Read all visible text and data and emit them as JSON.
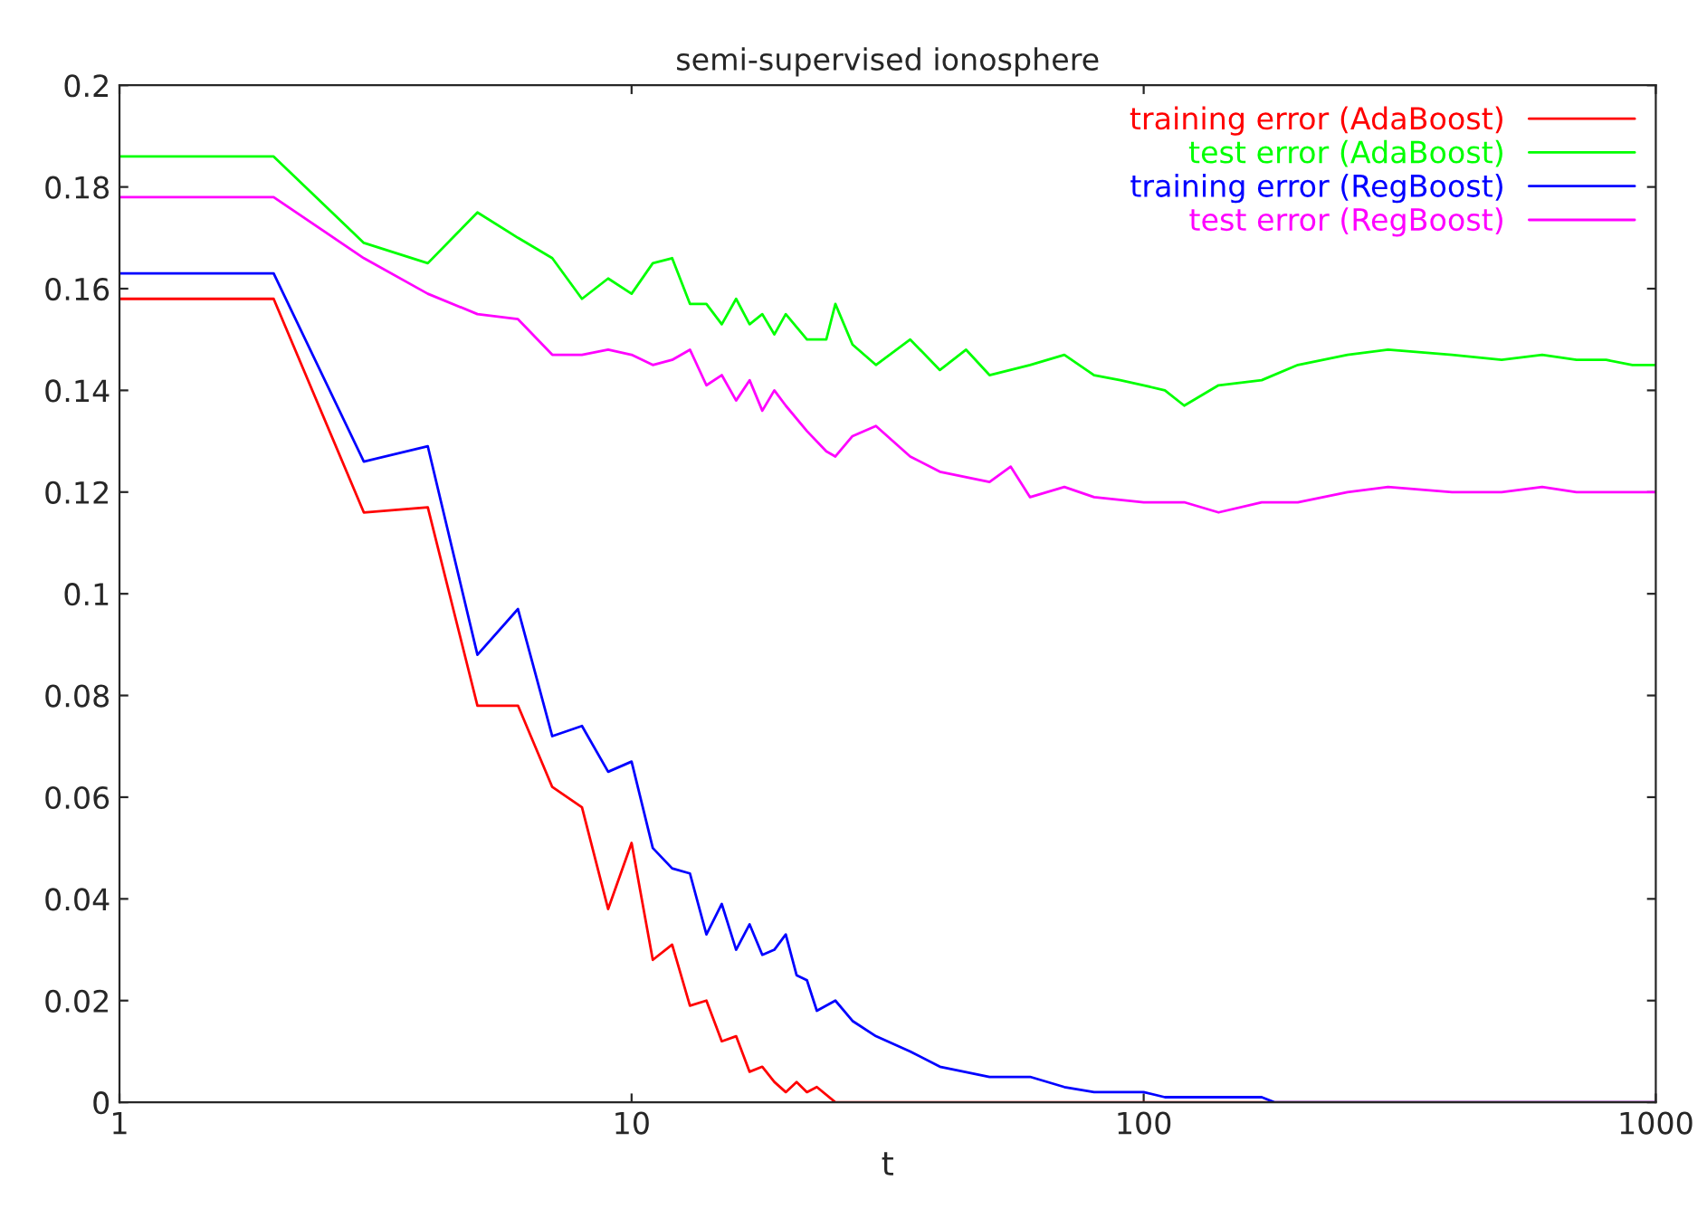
{
  "chart_data": {
    "type": "line",
    "title": "semi-supervised ionosphere",
    "xlabel": "t",
    "log": "x",
    "xlim": [
      1,
      1000
    ],
    "ylim": [
      0,
      0.2
    ],
    "xticks": [
      1,
      10,
      100,
      1000
    ],
    "yticks": [
      0,
      0.02,
      0.04,
      0.06,
      0.08,
      0.1,
      0.12,
      0.14,
      0.16,
      0.18,
      0.2
    ],
    "grid": false,
    "legend": "top right",
    "line_style": "solid",
    "marker": "none",
    "series": [
      {
        "name": "training error (AdaBoost)",
        "color": "#ff0000",
        "x": [
          1,
          2,
          3,
          4,
          5,
          6,
          7,
          8,
          9,
          10,
          11,
          12,
          13,
          14,
          15,
          16,
          17,
          18,
          19,
          20,
          21,
          22,
          23,
          25,
          1000
        ],
        "values": [
          0.158,
          0.158,
          0.116,
          0.117,
          0.078,
          0.078,
          0.062,
          0.058,
          0.038,
          0.051,
          0.028,
          0.031,
          0.019,
          0.02,
          0.012,
          0.013,
          0.006,
          0.007,
          0.004,
          0.002,
          0.004,
          0.002,
          0.003,
          0.0,
          0.0
        ]
      },
      {
        "name": "test error (AdaBoost)",
        "color": "#00ff00",
        "x": [
          1,
          2,
          3,
          4,
          5,
          6,
          7,
          8,
          9,
          10,
          11,
          12,
          13,
          14,
          15,
          16,
          17,
          18,
          19,
          20,
          22,
          24,
          25,
          27,
          30,
          35,
          40,
          45,
          50,
          60,
          70,
          80,
          90,
          100,
          110,
          120,
          140,
          170,
          200,
          250,
          300,
          400,
          500,
          600,
          700,
          800,
          900,
          1000
        ],
        "values": [
          0.186,
          0.186,
          0.169,
          0.165,
          0.175,
          0.17,
          0.166,
          0.158,
          0.162,
          0.159,
          0.165,
          0.166,
          0.157,
          0.157,
          0.153,
          0.158,
          0.153,
          0.155,
          0.151,
          0.155,
          0.15,
          0.15,
          0.157,
          0.149,
          0.145,
          0.15,
          0.144,
          0.148,
          0.143,
          0.145,
          0.147,
          0.143,
          0.142,
          0.141,
          0.14,
          0.137,
          0.141,
          0.142,
          0.145,
          0.147,
          0.148,
          0.147,
          0.146,
          0.147,
          0.146,
          0.146,
          0.145,
          0.145
        ]
      },
      {
        "name": "training error (RegBoost)",
        "color": "#0000ff",
        "x": [
          1,
          2,
          3,
          4,
          5,
          6,
          7,
          8,
          9,
          10,
          11,
          12,
          13,
          14,
          15,
          16,
          17,
          18,
          19,
          20,
          21,
          22,
          23,
          25,
          27,
          30,
          35,
          40,
          50,
          60,
          70,
          80,
          100,
          110,
          150,
          170,
          180,
          1000
        ],
        "values": [
          0.163,
          0.163,
          0.126,
          0.129,
          0.088,
          0.097,
          0.072,
          0.074,
          0.065,
          0.067,
          0.05,
          0.046,
          0.045,
          0.033,
          0.039,
          0.03,
          0.035,
          0.029,
          0.03,
          0.033,
          0.025,
          0.024,
          0.018,
          0.02,
          0.016,
          0.013,
          0.01,
          0.007,
          0.005,
          0.005,
          0.003,
          0.002,
          0.002,
          0.001,
          0.001,
          0.001,
          0.0,
          0.0
        ]
      },
      {
        "name": "test error (RegBoost)",
        "color": "#ff00ff",
        "x": [
          1,
          2,
          3,
          4,
          5,
          6,
          7,
          8,
          9,
          10,
          11,
          12,
          13,
          14,
          15,
          16,
          17,
          18,
          19,
          20,
          22,
          24,
          25,
          27,
          30,
          35,
          40,
          50,
          55,
          60,
          70,
          80,
          100,
          120,
          140,
          170,
          200,
          250,
          300,
          400,
          500,
          600,
          700,
          1000
        ],
        "values": [
          0.178,
          0.178,
          0.166,
          0.159,
          0.155,
          0.154,
          0.147,
          0.147,
          0.148,
          0.147,
          0.145,
          0.146,
          0.148,
          0.141,
          0.143,
          0.138,
          0.142,
          0.136,
          0.14,
          0.137,
          0.132,
          0.128,
          0.127,
          0.131,
          0.133,
          0.127,
          0.124,
          0.122,
          0.125,
          0.119,
          0.121,
          0.119,
          0.118,
          0.118,
          0.116,
          0.118,
          0.118,
          0.12,
          0.121,
          0.12,
          0.12,
          0.121,
          0.12,
          0.12
        ]
      }
    ]
  }
}
